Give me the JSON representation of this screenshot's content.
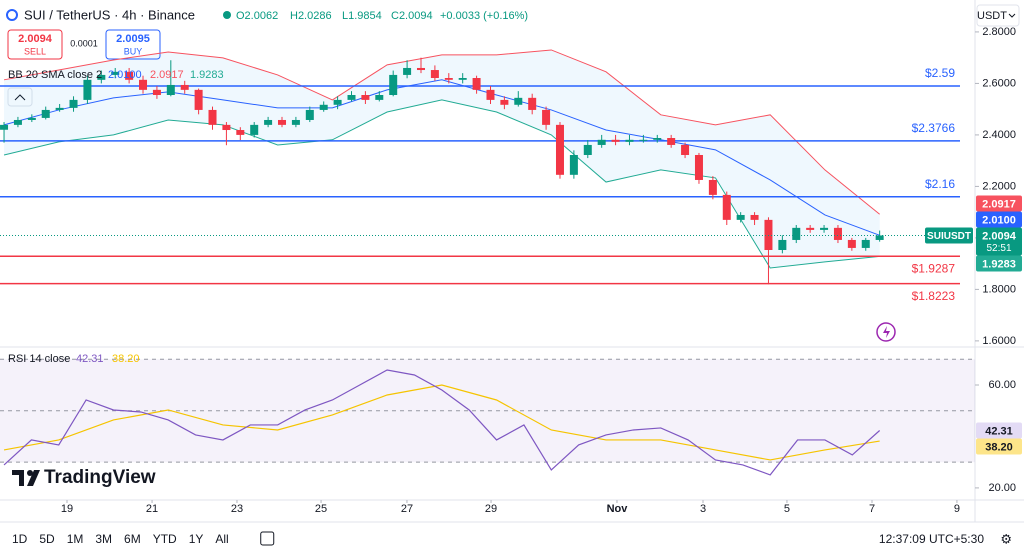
{
  "header": {
    "symbol": "SUI / TetherUS · 4h · Binance",
    "ohlc": [
      "O2.0062",
      "H2.0286",
      "L1.9854",
      "C2.0094",
      "+0.0033 (+0.16%)"
    ],
    "sell_price": "2.0094",
    "sell": "SELL",
    "spread": "0.0001",
    "buy_price": "2.0095",
    "buy": "BUY",
    "currency": "USDT"
  },
  "chart_data": [
    {
      "type": "candlestick",
      "symbol_label": "SUIUSDT",
      "countdown": "52:51",
      "indicator": "BB 20 SMA close 2",
      "up_color": "#089981",
      "down_color": "#f23645",
      "candles": [
        [
          2.42,
          2.45,
          2.37,
          2.439
        ],
        [
          2.439,
          2.47,
          2.43,
          2.458
        ],
        [
          2.458,
          2.48,
          2.45,
          2.466
        ],
        [
          2.466,
          2.51,
          2.46,
          2.497
        ],
        [
          2.497,
          2.52,
          2.49,
          2.505
        ],
        [
          2.505,
          2.55,
          2.49,
          2.536
        ],
        [
          2.536,
          2.63,
          2.52,
          2.614
        ],
        [
          2.614,
          2.65,
          2.6,
          2.633
        ],
        [
          2.633,
          2.66,
          2.62,
          2.645
        ],
        [
          2.645,
          2.66,
          2.6,
          2.614
        ],
        [
          2.614,
          2.63,
          2.56,
          2.575
        ],
        [
          2.575,
          2.59,
          2.54,
          2.555
        ],
        [
          2.555,
          2.69,
          2.55,
          2.594
        ],
        [
          2.594,
          2.61,
          2.56,
          2.575
        ],
        [
          2.575,
          2.58,
          2.48,
          2.497
        ],
        [
          2.497,
          2.51,
          2.42,
          2.439
        ],
        [
          2.439,
          2.45,
          2.36,
          2.419
        ],
        [
          2.419,
          2.43,
          2.38,
          2.4
        ],
        [
          2.4,
          2.45,
          2.39,
          2.439
        ],
        [
          2.439,
          2.47,
          2.43,
          2.458
        ],
        [
          2.458,
          2.47,
          2.43,
          2.439
        ],
        [
          2.439,
          2.47,
          2.43,
          2.458
        ],
        [
          2.458,
          2.51,
          2.45,
          2.497
        ],
        [
          2.497,
          2.53,
          2.49,
          2.517
        ],
        [
          2.517,
          2.55,
          2.5,
          2.536
        ],
        [
          2.536,
          2.57,
          2.53,
          2.555
        ],
        [
          2.555,
          2.57,
          2.52,
          2.536
        ],
        [
          2.536,
          2.57,
          2.53,
          2.555
        ],
        [
          2.555,
          2.65,
          2.55,
          2.633
        ],
        [
          2.633,
          2.69,
          2.62,
          2.66
        ],
        [
          2.66,
          2.7,
          2.64,
          2.652
        ],
        [
          2.652,
          2.67,
          2.61,
          2.621
        ],
        [
          2.621,
          2.64,
          2.6,
          2.614
        ],
        [
          2.614,
          2.64,
          2.6,
          2.621
        ],
        [
          2.621,
          2.63,
          2.56,
          2.575
        ],
        [
          2.575,
          2.59,
          2.52,
          2.536
        ],
        [
          2.536,
          2.55,
          2.5,
          2.517
        ],
        [
          2.517,
          2.57,
          2.51,
          2.544
        ],
        [
          2.544,
          2.56,
          2.48,
          2.497
        ],
        [
          2.497,
          2.51,
          2.42,
          2.439
        ],
        [
          2.439,
          2.45,
          2.23,
          2.245
        ],
        [
          2.245,
          2.34,
          2.23,
          2.322
        ],
        [
          2.322,
          2.38,
          2.31,
          2.361
        ],
        [
          2.361,
          2.4,
          2.35,
          2.381
        ],
        [
          2.381,
          2.4,
          2.36,
          2.373
        ],
        [
          2.373,
          2.4,
          2.36,
          2.381
        ],
        [
          2.381,
          2.4,
          2.37,
          2.381
        ],
        [
          2.381,
          2.4,
          2.37,
          2.388
        ],
        [
          2.388,
          2.4,
          2.35,
          2.361
        ],
        [
          2.361,
          2.37,
          2.31,
          2.322
        ],
        [
          2.322,
          2.33,
          2.21,
          2.225
        ],
        [
          2.225,
          2.24,
          2.15,
          2.167
        ],
        [
          2.167,
          2.18,
          2.05,
          2.07
        ],
        [
          2.07,
          2.1,
          2.06,
          2.089
        ],
        [
          2.089,
          2.1,
          2.05,
          2.07
        ],
        [
          2.07,
          2.08,
          1.82,
          1.953
        ],
        [
          1.953,
          2.01,
          1.94,
          1.992
        ],
        [
          1.992,
          2.05,
          1.98,
          2.039
        ],
        [
          2.039,
          2.05,
          2.02,
          2.031
        ],
        [
          2.031,
          2.05,
          2.02,
          2.039
        ],
        [
          2.039,
          2.05,
          1.98,
          1.992
        ],
        [
          1.992,
          2.0,
          1.95,
          1.961
        ],
        [
          1.961,
          2.0,
          1.95,
          1.992
        ],
        [
          1.992,
          2.0286,
          1.9854,
          2.0094
        ]
      ],
      "series": [
        {
          "color": "#2962ff",
          "values": [
            2.439,
            2.497,
            2.544,
            2.567,
            2.536,
            2.505,
            2.505,
            2.575,
            2.614,
            2.555,
            2.497,
            2.419,
            2.381,
            2.342,
            2.225,
            2.089,
            2.01
          ],
          "value_labels": [
            null,
            null,
            null,
            null,
            null,
            null,
            null,
            null,
            null,
            null,
            null,
            null,
            null,
            null,
            null,
            null,
            "2.0100"
          ]
        },
        {
          "color": "#f7525f",
          "values": [
            2.614,
            2.652,
            2.691,
            2.722,
            2.699,
            2.633,
            2.536,
            2.672,
            2.711,
            2.711,
            2.73,
            2.645,
            2.478,
            2.439,
            2.478,
            2.264,
            2.0917
          ]
        },
        {
          "color": "#22ab94",
          "values": [
            2.322,
            2.373,
            2.4,
            2.458,
            2.439,
            2.361,
            2.381,
            2.489,
            2.536,
            2.489,
            2.4,
            2.217,
            2.264,
            2.233,
            1.883,
            1.907,
            1.9283
          ]
        }
      ],
      "levels": [
        {
          "value": 2.59,
          "label": "$2.59",
          "color": "#2962ff"
        },
        {
          "value": 2.3766,
          "label": "$2.3766",
          "color": "#2962ff"
        },
        {
          "value": 2.16,
          "label": "$2.16",
          "color": "#2962ff"
        },
        {
          "value": 1.9287,
          "label": "$1.9287",
          "color": "#f23645"
        },
        {
          "value": 1.8223,
          "label": "$1.8223",
          "color": "#f23645"
        }
      ],
      "ylim": [
        1.584,
        2.924
      ],
      "yticks": [
        {
          "value": 1.6,
          "label": "1.6000"
        },
        {
          "value": 1.8,
          "label": "1.8000"
        },
        {
          "value": 2.0,
          "label": "2.0000"
        },
        {
          "value": 2.2,
          "label": "2.2000"
        },
        {
          "value": 2.4,
          "label": "2.4000"
        },
        {
          "value": 2.6,
          "label": "2.6000"
        },
        {
          "value": 2.8,
          "label": "2.8000"
        }
      ],
      "xlim": [
        -0.29,
        69.86
      ],
      "xticks": [
        {
          "value": 4.53,
          "label": "19"
        },
        {
          "value": 10.65,
          "label": "21"
        },
        {
          "value": 16.76,
          "label": "23"
        },
        {
          "value": 22.81,
          "label": "25"
        },
        {
          "value": 28.99,
          "label": "27"
        },
        {
          "value": 35.04,
          "label": "29"
        },
        {
          "value": 44.1,
          "label": "Nov"
        },
        {
          "value": 50.29,
          "label": "3"
        },
        {
          "value": 56.33,
          "label": "5"
        },
        {
          "value": 62.45,
          "label": "7"
        },
        {
          "value": 68.56,
          "label": "9"
        }
      ]
    },
    {
      "type": "line",
      "title": "RSI 14 close",
      "series": [
        {
          "color": "#7e57c2",
          "values": [
            28.93,
            38.64,
            36.7,
            54.17,
            50.29,
            49.51,
            46.41,
            40.58,
            38.64,
            44.47,
            44.47,
            50.29,
            54.17,
            60.0,
            65.83,
            63.88,
            58.06,
            50.29,
            38.64,
            44.47,
            26.99,
            36.7,
            40.58,
            42.52,
            43.3,
            38.64,
            30.87,
            28.93,
            25.05,
            38.64,
            38.64,
            32.82,
            42.31
          ]
        },
        {
          "color": "#f5c400",
          "values": [
            34.76,
            38.64,
            46.41,
            50.29,
            44.47,
            42.52,
            48.35,
            56.12,
            60.0,
            54.17,
            42.52,
            38.64,
            38.64,
            34.76,
            30.87,
            34.76,
            38.2
          ],
          "value_labels": [
            null,
            null,
            null,
            null,
            null,
            null,
            null,
            null,
            null,
            null,
            null,
            null,
            null,
            null,
            null,
            null,
            "38.20"
          ]
        }
      ],
      "levels": [
        30,
        50,
        70
      ],
      "ylim": [
        15.3,
        73.6
      ],
      "yticks": [
        {
          "value": 20,
          "label": "20.00"
        },
        {
          "value": 60,
          "label": "60.00"
        }
      ]
    }
  ],
  "toolbar": {
    "ranges": [
      "1D",
      "5D",
      "1M",
      "3M",
      "6M",
      "YTD",
      "1Y",
      "All"
    ],
    "clock": "12:37:09 UTC+5:30"
  },
  "logo": "TradingView"
}
